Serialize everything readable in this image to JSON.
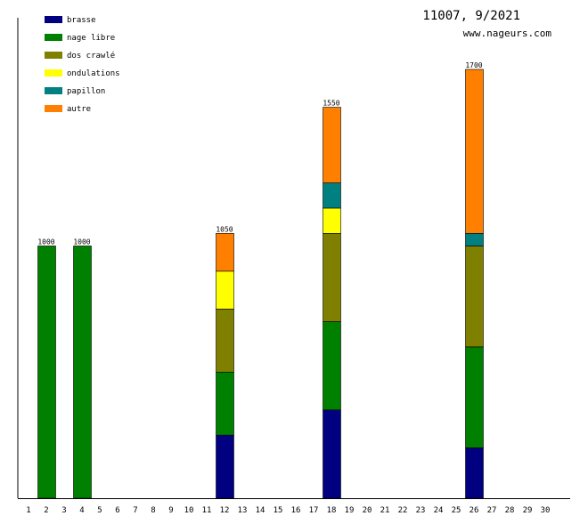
{
  "header": {
    "title": "11007, 9/2021",
    "site": "www.nageurs.com"
  },
  "chart_data": {
    "type": "bar",
    "stacked": true,
    "categories": [
      "1",
      "2",
      "3",
      "4",
      "5",
      "6",
      "7",
      "8",
      "9",
      "10",
      "11",
      "12",
      "13",
      "14",
      "15",
      "16",
      "17",
      "18",
      "19",
      "20",
      "21",
      "22",
      "23",
      "24",
      "25",
      "26",
      "27",
      "28",
      "29",
      "30"
    ],
    "ylim": [
      0,
      1700
    ],
    "grid": false,
    "legend_position": "top-left",
    "legend": [
      {
        "key": "brasse",
        "label": "brasse",
        "color": "#000080"
      },
      {
        "key": "nage_libre",
        "label": "nage libre",
        "color": "#008000"
      },
      {
        "key": "dos_crawle",
        "label": "dos crawlé",
        "color": "#808000"
      },
      {
        "key": "ondulations",
        "label": "ondulations",
        "color": "#ffff00"
      },
      {
        "key": "papillon",
        "label": "papillon",
        "color": "#008080"
      },
      {
        "key": "autre",
        "label": "autre",
        "color": "#ff8000"
      }
    ],
    "bars": [
      {
        "day": "2",
        "total": 1000,
        "total_label": "1000",
        "segments": [
          {
            "series": "nage_libre",
            "value": 1000
          }
        ]
      },
      {
        "day": "4",
        "total": 1000,
        "total_label": "1000",
        "segments": [
          {
            "series": "nage_libre",
            "value": 1000
          }
        ]
      },
      {
        "day": "12",
        "total": 1050,
        "total_label": "1050",
        "segments": [
          {
            "series": "brasse",
            "value": 250
          },
          {
            "series": "nage_libre",
            "value": 250
          },
          {
            "series": "dos_crawle",
            "value": 250
          },
          {
            "series": "ondulations",
            "value": 150
          },
          {
            "series": "autre",
            "value": 150
          }
        ]
      },
      {
        "day": "18",
        "total": 1550,
        "total_label": "1550",
        "segments": [
          {
            "series": "brasse",
            "value": 350
          },
          {
            "series": "nage_libre",
            "value": 350
          },
          {
            "series": "dos_crawle",
            "value": 350
          },
          {
            "series": "ondulations",
            "value": 100
          },
          {
            "series": "papillon",
            "value": 100
          },
          {
            "series": "autre",
            "value": 300
          }
        ]
      },
      {
        "day": "26",
        "total": 1700,
        "total_label": "1700",
        "segments": [
          {
            "series": "brasse",
            "value": 200
          },
          {
            "series": "nage_libre",
            "value": 400
          },
          {
            "series": "dos_crawle",
            "value": 400
          },
          {
            "series": "papillon",
            "value": 50
          },
          {
            "series": "autre",
            "value": 650
          }
        ]
      }
    ]
  }
}
